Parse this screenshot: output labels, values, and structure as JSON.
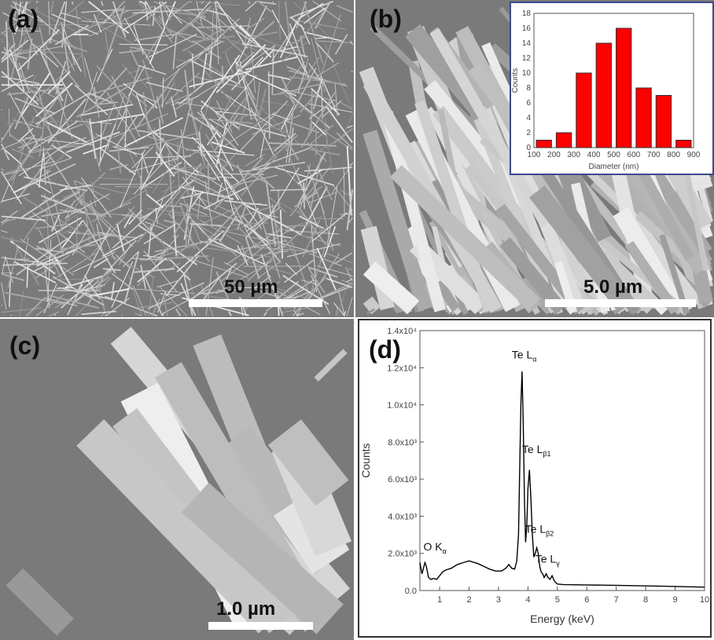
{
  "panels": {
    "a": {
      "label": "(a)",
      "scale_bar": "50 µm"
    },
    "b": {
      "label": "(b)",
      "scale_bar": "5.0 µm"
    },
    "c": {
      "label": "(c)",
      "scale_bar": "1.0 µm"
    },
    "d": {
      "label": "(d)"
    }
  },
  "chart_data": [
    {
      "type": "bar",
      "panel": "b inset",
      "xlabel": "Diameter (nm)",
      "ylabel": "Counts",
      "bins": [
        [
          100,
          200
        ],
        [
          200,
          300
        ],
        [
          300,
          400
        ],
        [
          400,
          500
        ],
        [
          500,
          600
        ],
        [
          600,
          700
        ],
        [
          700,
          800
        ],
        [
          800,
          900
        ]
      ],
      "values": [
        1,
        2,
        10,
        14,
        16,
        8,
        7,
        1
      ],
      "xlim": [
        100,
        900
      ],
      "ylim": [
        0,
        18
      ],
      "xticks": [
        "100",
        "200",
        "300",
        "400",
        "500",
        "600",
        "700",
        "800",
        "900"
      ],
      "yticks": [
        "0",
        "2",
        "4",
        "6",
        "8",
        "10",
        "12",
        "14",
        "16",
        "18"
      ],
      "bar_color": "#ff0000"
    },
    {
      "type": "line",
      "panel": "d",
      "xlabel": "Energy (keV)",
      "ylabel": "Counts",
      "xlim": [
        0.33,
        10
      ],
      "ylim": [
        0,
        14000
      ],
      "xticks": [
        "1",
        "2",
        "3",
        "4",
        "5",
        "6",
        "7",
        "8",
        "9",
        "10"
      ],
      "yticks": [
        "0.0",
        "2.0x10³",
        "4.0x10³",
        "6.0x10³",
        "8.0x10³",
        "1.0x10⁴",
        "1.2x10⁴",
        "1.4x10⁴"
      ],
      "x": [
        0.33,
        0.4,
        0.45,
        0.5,
        0.55,
        0.62,
        0.7,
        0.8,
        0.9,
        1.0,
        1.1,
        1.2,
        1.4,
        1.6,
        1.8,
        2.0,
        2.1,
        2.3,
        2.5,
        2.7,
        2.9,
        3.1,
        3.25,
        3.35,
        3.45,
        3.55,
        3.62,
        3.68,
        3.72,
        3.76,
        3.8,
        3.84,
        3.88,
        3.92,
        3.96,
        4.0,
        4.05,
        4.1,
        4.15,
        4.2,
        4.25,
        4.3,
        4.35,
        4.4,
        4.45,
        4.5,
        4.55,
        4.62,
        4.68,
        4.75,
        4.82,
        4.9,
        5.0,
        5.2,
        6,
        7,
        8,
        9,
        10
      ],
      "y": [
        1500,
        900,
        1200,
        1500,
        1300,
        700,
        600,
        650,
        600,
        800,
        1000,
        1100,
        1200,
        1400,
        1500,
        1600,
        1550,
        1450,
        1300,
        1150,
        1050,
        1050,
        1200,
        1400,
        1200,
        1150,
        1600,
        3000,
        6500,
        10000,
        11800,
        9000,
        5000,
        2600,
        3500,
        5500,
        6500,
        5000,
        3000,
        1800,
        2000,
        2300,
        2000,
        1300,
        1000,
        900,
        700,
        900,
        700,
        600,
        800,
        500,
        350,
        320,
        300,
        280,
        250,
        220,
        180
      ],
      "annotations": [
        {
          "text": "O K",
          "sub": "α",
          "x": 0.5
        },
        {
          "text": "Te L",
          "sub": "α",
          "x": 3.8
        },
        {
          "text": "Te L",
          "sub": "β1",
          "x": 4.05
        },
        {
          "text": "Te L",
          "sub": "β2",
          "x": 4.35
        },
        {
          "text": "Te L",
          "sub": "γ",
          "x": 4.75
        }
      ],
      "line_color": "#000000"
    }
  ]
}
